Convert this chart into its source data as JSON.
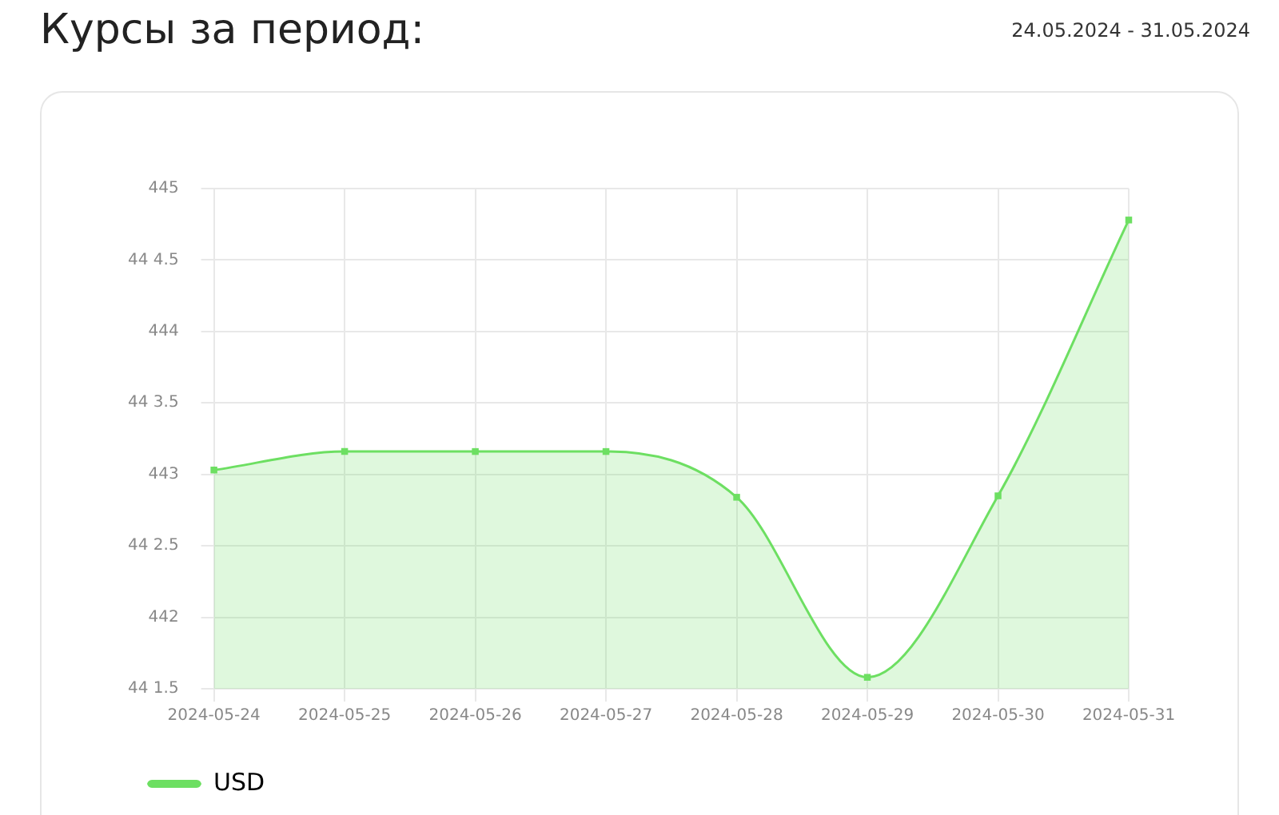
{
  "chart_data": {
    "type": "area",
    "title": "Курсы за период:",
    "subtitle": "24.05.2024 - 31.05.2024",
    "categories": [
      "2024-05-24",
      "2024-05-25",
      "2024-05-26",
      "2024-05-27",
      "2024-05-28",
      "2024-05-29",
      "2024-05-30",
      "2024-05-31"
    ],
    "series": [
      {
        "name": "USD",
        "color": "#6ddf62",
        "values": [
          443.03,
          443.16,
          443.16,
          443.16,
          442.84,
          441.58,
          442.85,
          444.78
        ]
      }
    ],
    "ylim": [
      441.5,
      445
    ],
    "yticks": [
      {
        "value": 441.5,
        "label": "44 1.5"
      },
      442,
      {
        "value": 442.5,
        "label": "44 2.5"
      },
      443,
      {
        "value": 443.5,
        "label": "44 3.5"
      },
      444,
      {
        "value": 444.5,
        "label": "44 4.5"
      },
      445
    ],
    "grid": true,
    "legend": "bottom left",
    "marker": "square"
  }
}
